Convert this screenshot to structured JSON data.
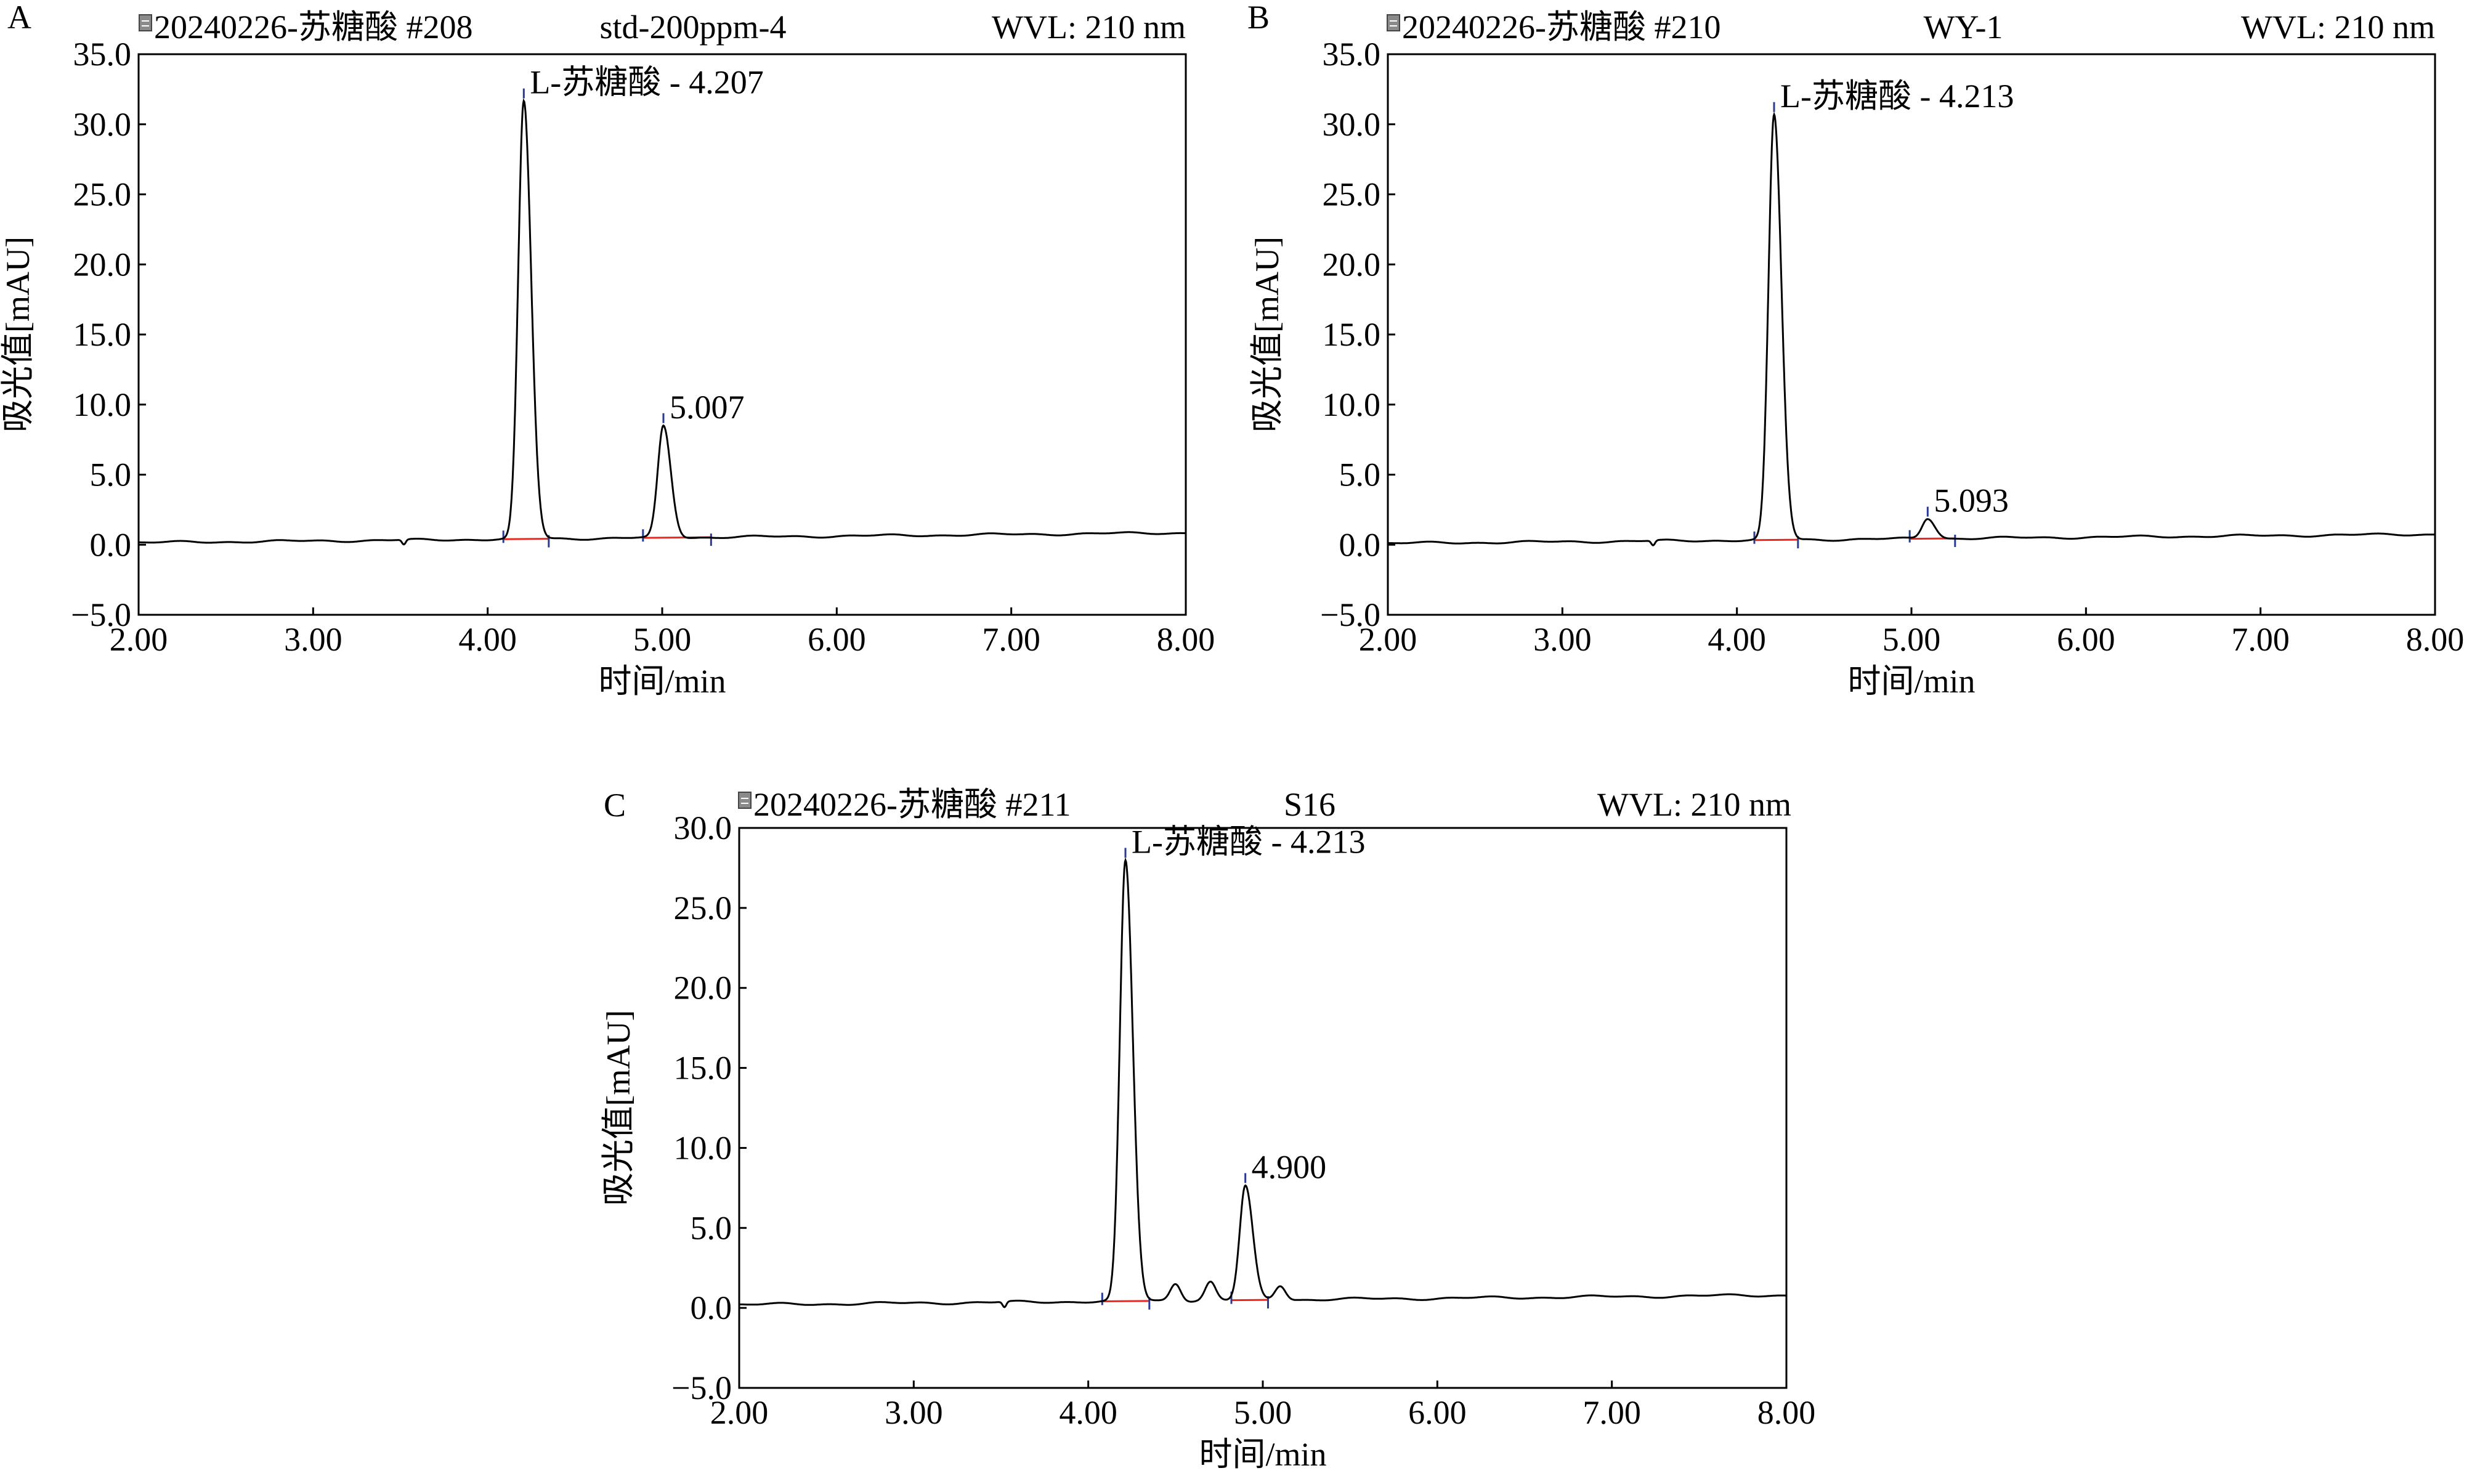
{
  "figure": {
    "background": "#ffffff"
  },
  "colors": {
    "signal": "#000000",
    "baseline": "#e8281e",
    "marker": "#2a3c8f",
    "frame": "#000000"
  },
  "icons": {
    "file": "document-icon"
  },
  "chart_data": [
    {
      "type": "line",
      "panel_label": "A",
      "file_label": "20240226-苏糖酸 #208",
      "sample": "std-200ppm-4",
      "wavelength": "WVL: 210 nm",
      "xlabel": "时间/min",
      "ylabel": "吸光值[mAU]",
      "xlim": [
        2.0,
        8.0
      ],
      "ylim": [
        -5.0,
        35.0
      ],
      "xticks": [
        "2.00",
        "3.00",
        "4.00",
        "5.00",
        "6.00",
        "7.00",
        "8.00"
      ],
      "yticks": [
        "−5.0",
        "0.0",
        "5.0",
        "10.0",
        "15.0",
        "20.0",
        "25.0",
        "30.0",
        "35.0"
      ],
      "baseline_start": 0.15,
      "baseline_end": 0.85,
      "peaks": [
        {
          "rt": 4.207,
          "height": 31.2,
          "label": "L-苏糖酸 - 4.207",
          "start": 4.09,
          "end": 4.35
        },
        {
          "rt": 5.007,
          "height": 7.95,
          "label": "5.007",
          "start": 4.89,
          "end": 5.28
        }
      ],
      "minor_bumps": []
    },
    {
      "type": "line",
      "panel_label": "B",
      "file_label": "20240226-苏糖酸 #210",
      "sample": "WY-1",
      "wavelength": "WVL: 210 nm",
      "xlabel": "时间/min",
      "ylabel": "吸光值[mAU]",
      "xlim": [
        2.0,
        8.0
      ],
      "ylim": [
        -5.0,
        35.0
      ],
      "xticks": [
        "2.00",
        "3.00",
        "4.00",
        "5.00",
        "6.00",
        "7.00",
        "8.00"
      ],
      "yticks": [
        "−5.0",
        "0.0",
        "5.0",
        "10.0",
        "15.0",
        "20.0",
        "25.0",
        "30.0",
        "35.0"
      ],
      "baseline_start": 0.1,
      "baseline_end": 0.75,
      "peaks": [
        {
          "rt": 4.213,
          "height": 30.3,
          "label": "L-苏糖酸 - 4.213",
          "start": 4.1,
          "end": 4.35
        },
        {
          "rt": 5.093,
          "height": 1.45,
          "label": "5.093",
          "start": 4.99,
          "end": 5.25
        }
      ],
      "minor_bumps": []
    },
    {
      "type": "line",
      "panel_label": "C",
      "file_label": "20240226-苏糖酸 #211",
      "sample": "S16",
      "wavelength": "WVL: 210 nm",
      "xlabel": "时间/min",
      "ylabel": "吸光值[mAU]",
      "xlim": [
        2.0,
        8.0
      ],
      "ylim": [
        -5.0,
        30.0
      ],
      "xticks": [
        "2.00",
        "3.00",
        "4.00",
        "5.00",
        "6.00",
        "7.00",
        "8.00"
      ],
      "yticks": [
        "−5.0",
        "0.0",
        "5.0",
        "10.0",
        "15.0",
        "20.0",
        "25.0",
        "30.0"
      ],
      "baseline_start": 0.2,
      "baseline_end": 0.8,
      "peaks": [
        {
          "rt": 4.213,
          "height": 27.5,
          "label": "L-苏糖酸 - 4.213",
          "start": 4.08,
          "end": 4.35
        },
        {
          "rt": 4.9,
          "height": 7.1,
          "label": "4.900",
          "start": 4.82,
          "end": 5.03
        }
      ],
      "minor_bumps": [
        {
          "rt": 4.5,
          "height": 1.1
        },
        {
          "rt": 4.7,
          "height": 1.15
        },
        {
          "rt": 5.1,
          "height": 0.9
        }
      ]
    }
  ]
}
